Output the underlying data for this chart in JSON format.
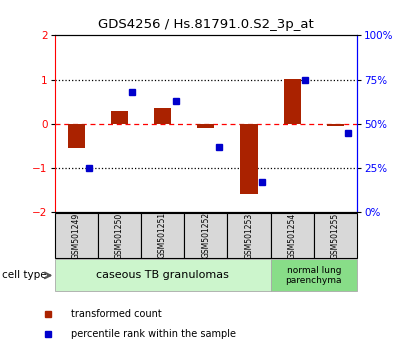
{
  "title": "GDS4256 / Hs.81791.0.S2_3p_at",
  "samples": [
    "GSM501249",
    "GSM501250",
    "GSM501251",
    "GSM501252",
    "GSM501253",
    "GSM501254",
    "GSM501255"
  ],
  "red_values": [
    -0.55,
    0.3,
    0.35,
    -0.1,
    -1.58,
    1.02,
    -0.05
  ],
  "blue_values_pct": [
    25,
    68,
    63,
    37,
    17,
    75,
    45
  ],
  "ylim_left": [
    -2,
    2
  ],
  "ylim_right": [
    0,
    100
  ],
  "yticks_left": [
    -2,
    -1,
    0,
    1,
    2
  ],
  "yticks_right": [
    0,
    25,
    50,
    75,
    100
  ],
  "ytick_labels_right": [
    "0%",
    "25%",
    "50%",
    "75%",
    "100%"
  ],
  "group1_label": "caseous TB granulomas",
  "group2_label": "normal lung\nparenchyma",
  "cell_type_label": "cell type",
  "legend_red": "transformed count",
  "legend_blue": "percentile rank within the sample",
  "bar_width": 0.4,
  "red_color": "#aa2200",
  "blue_color": "#0000cc",
  "group1_bg": "#ccf5cc",
  "group2_bg": "#88dd88",
  "sample_box_bg": "#d8d8d8",
  "background_color": "#ffffff"
}
